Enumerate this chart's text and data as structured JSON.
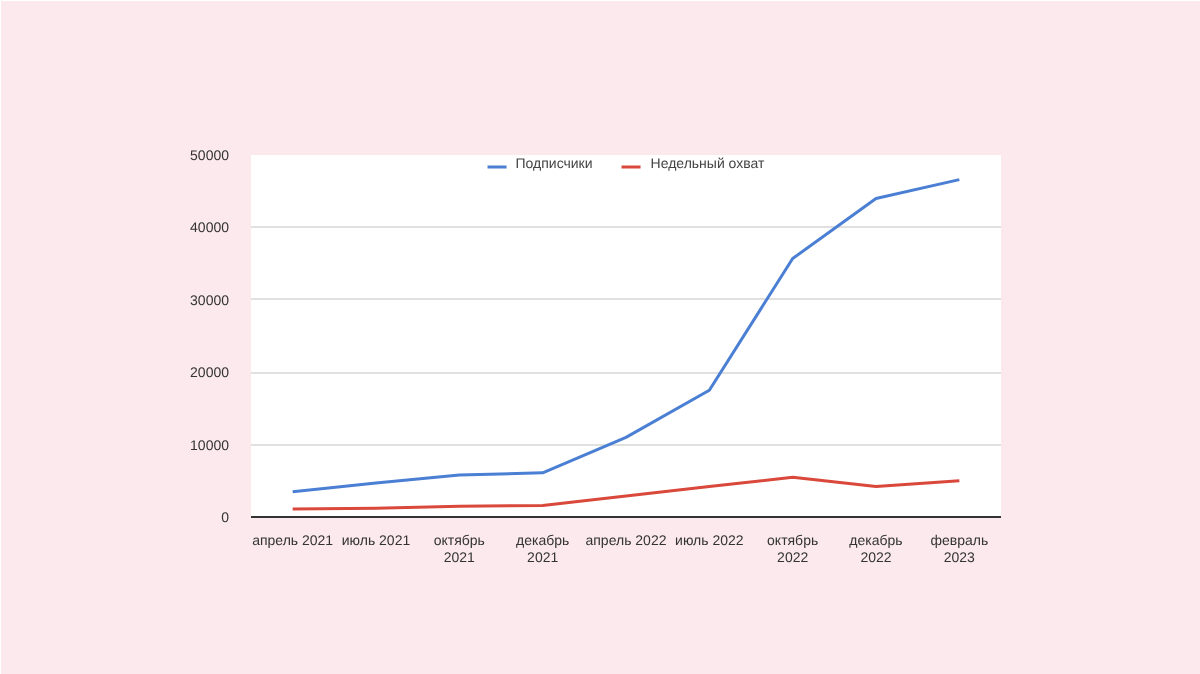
{
  "chart_data": {
    "type": "line",
    "categories": [
      "апрель 2021",
      "июль 2021",
      "октябрь 2021",
      "декабрь 2021",
      "апрель 2022",
      "июль 2022",
      "октябрь 2022",
      "декабрь 2022",
      "февраль 2023"
    ],
    "series": [
      {
        "name": "Подписчики",
        "color": "#4a7fd4",
        "values": [
          3500,
          4700,
          5800,
          6100,
          11000,
          17500,
          35700,
          44000,
          46600
        ]
      },
      {
        "name": "Недельный охват",
        "color": "#d9483b",
        "values": [
          1100,
          1200,
          1500,
          1600,
          2900,
          4200,
          5500,
          4200,
          5000
        ]
      }
    ],
    "ylim": [
      0,
      50000
    ],
    "yticks": [
      0,
      10000,
      20000,
      30000,
      40000,
      50000
    ],
    "grid": "y",
    "legend": "top"
  }
}
